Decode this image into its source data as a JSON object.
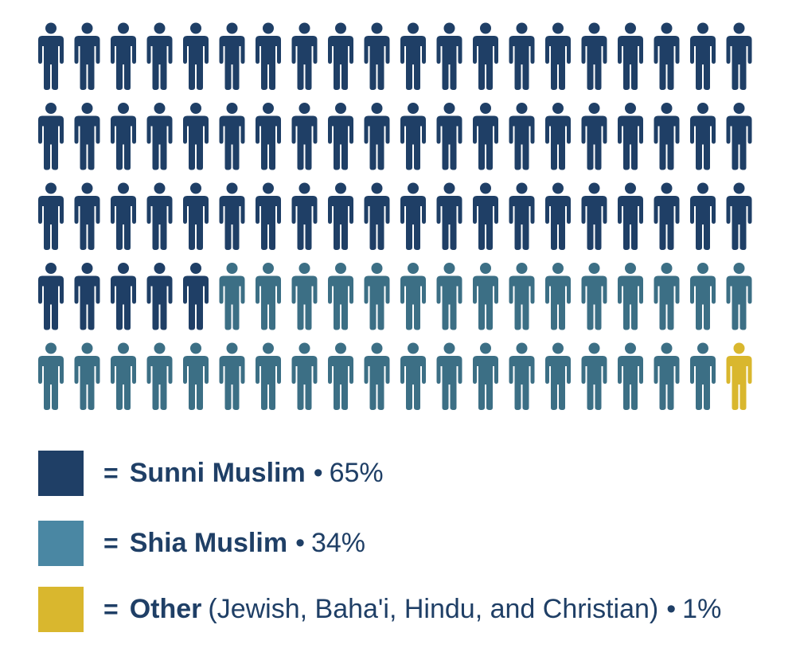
{
  "chart_data": {
    "type": "pictogram",
    "total_icons": 100,
    "rows": 5,
    "columns": 20,
    "series": [
      {
        "name": "Sunni Muslim",
        "detail": "",
        "value": 65,
        "label": "65%",
        "color": "#1f3f66"
      },
      {
        "name": "Shia Muslim",
        "detail": "",
        "value": 34,
        "label": "34%",
        "color": "#3c6f85"
      },
      {
        "name": "Other",
        "detail": "(Jewish, Baha'i, Hindu, and Christian)",
        "value": 1,
        "label": "1%",
        "color": "#d9b72e"
      }
    ],
    "legend_placement": "bottom",
    "legend_swatch_colors": [
      "#1f3f66",
      "#4a87a3",
      "#d9b72e"
    ],
    "icon": "person-icon"
  },
  "legend": {
    "equals": "=",
    "bullet": "•"
  }
}
